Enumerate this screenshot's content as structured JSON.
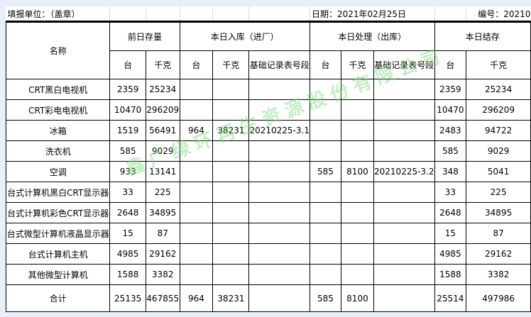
{
  "header": {
    "unit_label": "填报单位：（盖章）",
    "date_label": "日期：2021年02月25日",
    "code_label": "编号：20210"
  },
  "columns": {
    "name": "名称",
    "prev_stock": "前日存量",
    "inbound": "本日入库（进厂）",
    "processed": "本日处理（出库）",
    "balance": "本日结存",
    "units": "台",
    "kg": "千克",
    "record_no": "基础记录表号段"
  },
  "rows": [
    {
      "name": "CRT黑白电视机",
      "prev_units": "2359",
      "prev_kg": "25234",
      "in_units": "",
      "in_kg": "",
      "in_rec": "",
      "out_units": "",
      "out_kg": "",
      "out_rec": "",
      "bal_units": "2359",
      "bal_kg": "25234"
    },
    {
      "name": "CRT彩电电视机",
      "prev_units": "10470",
      "prev_kg": "296209",
      "in_units": "",
      "in_kg": "",
      "in_rec": "",
      "out_units": "",
      "out_kg": "",
      "out_rec": "",
      "bal_units": "10470",
      "bal_kg": "296209"
    },
    {
      "name": "冰箱",
      "prev_units": "1519",
      "prev_kg": "56491",
      "in_units": "964",
      "in_kg": "38231",
      "in_rec": "20210225-3.1",
      "out_units": "",
      "out_kg": "",
      "out_rec": "",
      "bal_units": "2483",
      "bal_kg": "94722"
    },
    {
      "name": "洗衣机",
      "prev_units": "585",
      "prev_kg": "9029",
      "in_units": "",
      "in_kg": "",
      "in_rec": "",
      "out_units": "",
      "out_kg": "",
      "out_rec": "",
      "bal_units": "585",
      "bal_kg": "9029"
    },
    {
      "name": "空调",
      "prev_units": "933",
      "prev_kg": "13141",
      "in_units": "",
      "in_kg": "",
      "in_rec": "",
      "out_units": "585",
      "out_kg": "8100",
      "out_rec": "20210225-3.2",
      "bal_units": "348",
      "bal_kg": "5041"
    },
    {
      "name": "台式计算机黑白CRT显示器",
      "prev_units": "33",
      "prev_kg": "225",
      "in_units": "",
      "in_kg": "",
      "in_rec": "",
      "out_units": "",
      "out_kg": "",
      "out_rec": "",
      "bal_units": "33",
      "bal_kg": "225"
    },
    {
      "name": "台式计算机彩色CRT显示器",
      "prev_units": "2648",
      "prev_kg": "34895",
      "in_units": "",
      "in_kg": "",
      "in_rec": "",
      "out_units": "",
      "out_kg": "",
      "out_rec": "",
      "bal_units": "2648",
      "bal_kg": "34895"
    },
    {
      "name": "台式微型计算机液晶显示器",
      "prev_units": "15",
      "prev_kg": "87",
      "in_units": "",
      "in_kg": "",
      "in_rec": "",
      "out_units": "",
      "out_kg": "",
      "out_rec": "",
      "bal_units": "15",
      "bal_kg": "87"
    },
    {
      "name": "台式计算机主机",
      "prev_units": "4985",
      "prev_kg": "29162",
      "in_units": "",
      "in_kg": "",
      "in_rec": "",
      "out_units": "",
      "out_kg": "",
      "out_rec": "",
      "bal_units": "4985",
      "bal_kg": "29162"
    },
    {
      "name": "其他微型计算机",
      "prev_units": "1588",
      "prev_kg": "3382",
      "in_units": "",
      "in_kg": "",
      "in_rec": "",
      "out_units": "",
      "out_kg": "",
      "out_rec": "",
      "bal_units": "1588",
      "bal_kg": "3382"
    }
  ],
  "total": {
    "name": "合计",
    "prev_units": "25135",
    "prev_kg": "467855",
    "in_units": "964",
    "in_kg": "38231",
    "in_rec": "",
    "out_units": "585",
    "out_kg": "8100",
    "out_rec": "",
    "bal_units": "25514",
    "bal_kg": "497986"
  },
  "watermark": {
    "text": "鑫广绿环再生资源股份有限公司",
    "color": "#78dc78"
  }
}
